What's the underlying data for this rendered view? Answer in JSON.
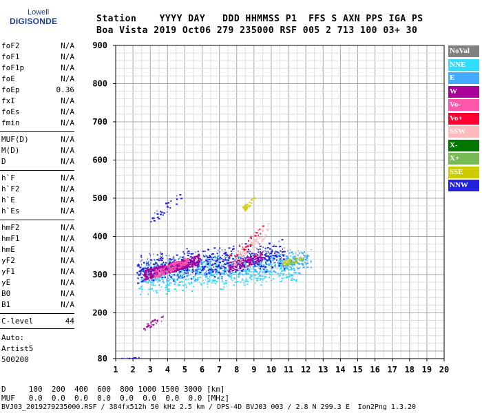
{
  "logo": {
    "top": "Lowell",
    "main": "DIGISONDE"
  },
  "header": {
    "line1": "Station    YYYY DAY   DDD HHMMSS P1  FFS S AXN PPS IGA PS",
    "line2": "Boa Vista 2019 Oct06 279 235000 RSF 005 2 713 100 03+ 30"
  },
  "params_group1": [
    {
      "label": "foF2",
      "value": "N/A"
    },
    {
      "label": "foF1",
      "value": "N/A"
    },
    {
      "label": "foF1p",
      "value": "N/A"
    },
    {
      "label": "foE",
      "value": "N/A"
    },
    {
      "label": "foEp",
      "value": "0.36"
    },
    {
      "label": "fxI",
      "value": "N/A"
    },
    {
      "label": "foEs",
      "value": "N/A"
    },
    {
      "label": "fmin",
      "value": "N/A"
    }
  ],
  "params_group2": [
    {
      "label": "MUF(D)",
      "value": "N/A"
    },
    {
      "label": "M(D)",
      "value": "N/A"
    },
    {
      "label": "D",
      "value": "N/A"
    }
  ],
  "params_group3": [
    {
      "label": "h`F",
      "value": "N/A"
    },
    {
      "label": "h`F2",
      "value": "N/A"
    },
    {
      "label": "h`E",
      "value": "N/A"
    },
    {
      "label": "h`Es",
      "value": "N/A"
    }
  ],
  "params_group4": [
    {
      "label": "hmF2",
      "value": "N/A"
    },
    {
      "label": "hmF1",
      "value": "N/A"
    },
    {
      "label": "hmE",
      "value": "N/A"
    },
    {
      "label": "yF2",
      "value": "N/A"
    },
    {
      "label": "yF1",
      "value": "N/A"
    },
    {
      "label": "yE",
      "value": "N/A"
    },
    {
      "label": "B0",
      "value": "N/A"
    },
    {
      "label": "B1",
      "value": "N/A"
    }
  ],
  "clevel": {
    "label": "C-level",
    "value": "44"
  },
  "auto": {
    "line1": "Auto:",
    "line2": "Artist5",
    "line3": "500200"
  },
  "footer": {
    "line1": "D     100  200  400  600  800 1000 1500 3000 [km]",
    "line2": "MUF   0.0  0.0  0.0  0.0  0.0  0.0  0.0  0.0 [MHz]",
    "line3": "BVJ03_2019279235000.RSF / 384fx512h 50 kHz 2.5 km / DPS-4D BVJ03 003 / 2.8 N 299.3 E  Ion2Png 1.3.20"
  },
  "legend": [
    {
      "label": "NoVal",
      "color": "#808080"
    },
    {
      "label": "NNE",
      "color": "#33ddff"
    },
    {
      "label": "E",
      "color": "#44aaff"
    },
    {
      "label": "W",
      "color": "#aa0099"
    },
    {
      "label": "Vo-",
      "color": "#ff55aa"
    },
    {
      "label": "Vo+",
      "color": "#ff0033"
    },
    {
      "label": "SSW",
      "color": "#ffbbbb"
    },
    {
      "label": "X-",
      "color": "#007700"
    },
    {
      "label": "X+",
      "color": "#77bb55"
    },
    {
      "label": "SSE",
      "color": "#cccc00"
    },
    {
      "label": "NNW",
      "color": "#2222dd"
    }
  ],
  "chart_data": {
    "type": "scatter",
    "xlim": [
      1,
      20
    ],
    "ylim": [
      80,
      900
    ],
    "xticks": [
      1,
      2,
      3,
      4,
      5,
      6,
      7,
      8,
      9,
      10,
      11,
      12,
      13,
      14,
      15,
      16,
      17,
      18,
      19,
      20
    ],
    "yticks": [
      80,
      200,
      300,
      400,
      500,
      600,
      700,
      800,
      900
    ],
    "xgrid_step": 0.5,
    "ygrid_step": 20,
    "grid": true,
    "legend_position": "right",
    "clusters": [
      {
        "series": "NNE",
        "x": [
          2.3,
          11.5
        ],
        "y_start": [
          255,
          330
        ],
        "y_end": [
          290,
          350
        ],
        "spread": 25,
        "n": 600
      },
      {
        "series": "E",
        "x": [
          2.5,
          12.3
        ],
        "y_start": [
          280,
          330
        ],
        "y_end": [
          320,
          360
        ],
        "spread": 30,
        "n": 600
      },
      {
        "series": "NNW",
        "x": [
          2.2,
          10.8
        ],
        "y_start": [
          290,
          340
        ],
        "y_end": [
          330,
          380
        ],
        "spread": 35,
        "n": 550
      },
      {
        "series": "W",
        "x": [
          2.6,
          5.8
        ],
        "y_start": [
          300,
          300
        ],
        "y_end": [
          340,
          340
        ],
        "spread": 25,
        "n": 450
      },
      {
        "series": "W",
        "x": [
          7.5,
          9.5
        ],
        "y_start": [
          320,
          320
        ],
        "y_end": [
          350,
          350
        ],
        "spread": 25,
        "n": 160
      },
      {
        "series": "Vo-",
        "x": [
          3.2,
          5.2
        ],
        "y_start": [
          300,
          300
        ],
        "y_end": [
          340,
          340
        ],
        "spread": 20,
        "n": 160
      },
      {
        "series": "SSW",
        "x": [
          7.8,
          9.8
        ],
        "y_start": [
          330,
          330
        ],
        "y_end": [
          420,
          420
        ],
        "spread": 30,
        "n": 90
      },
      {
        "series": "Vo+",
        "x": [
          7.5,
          9.5
        ],
        "y_start": [
          340,
          340
        ],
        "y_end": [
          420,
          420
        ],
        "spread": 30,
        "n": 30
      },
      {
        "series": "SSE",
        "x": [
          10.6,
          11.8
        ],
        "y_start": [
          330,
          330
        ],
        "y_end": [
          345,
          345
        ],
        "spread": 15,
        "n": 40
      },
      {
        "series": "SSE",
        "x": [
          8.3,
          9.0
        ],
        "y_start": [
          470,
          470
        ],
        "y_end": [
          500,
          500
        ],
        "spread": 15,
        "n": 25
      },
      {
        "series": "X+",
        "x": [
          10.8,
          12
        ],
        "y_start": [
          330,
          330
        ],
        "y_end": [
          345,
          345
        ],
        "spread": 12,
        "n": 20
      },
      {
        "series": "NNW",
        "x": [
          3.0,
          4.8
        ],
        "y_start": [
          440,
          440
        ],
        "y_end": [
          510,
          510
        ],
        "spread": 30,
        "n": 30
      },
      {
        "series": "W",
        "x": [
          2.5,
          3.8
        ],
        "y_start": [
          160,
          160
        ],
        "y_end": [
          190,
          190
        ],
        "spread": 15,
        "n": 30
      },
      {
        "series": "NNW",
        "x": [
          1.2,
          2.5
        ],
        "y_start": [
          82,
          82
        ],
        "y_end": [
          84,
          84
        ],
        "spread": 2,
        "n": 8
      }
    ]
  }
}
